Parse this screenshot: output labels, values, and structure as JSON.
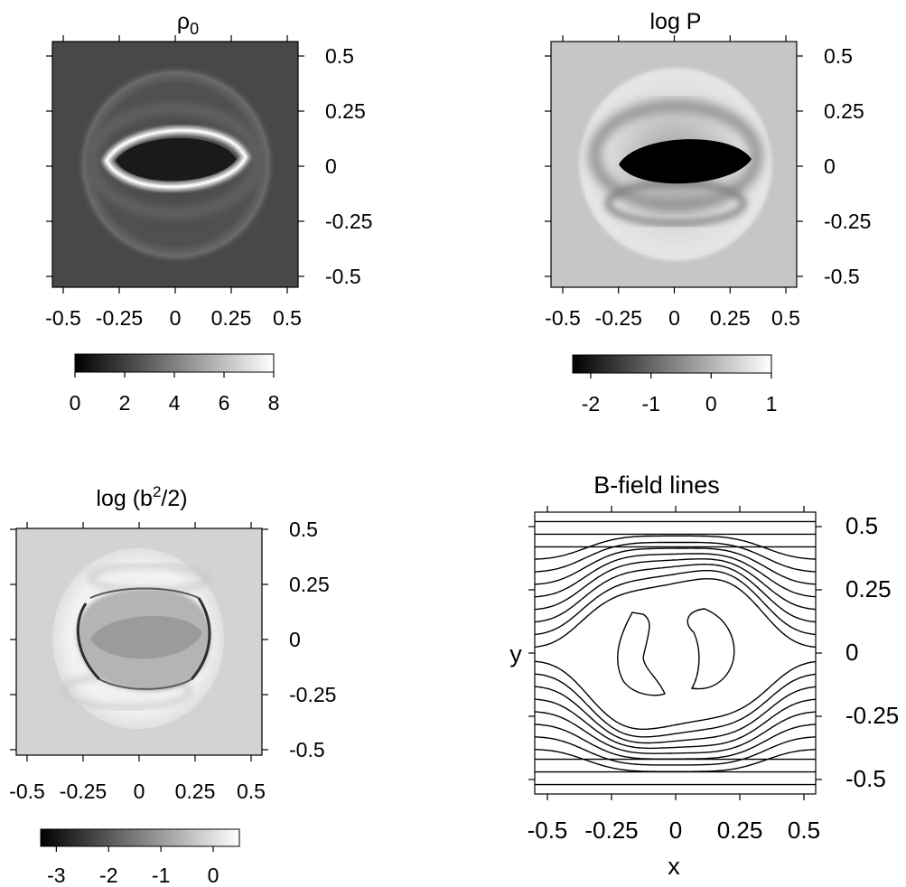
{
  "chart_data": [
    {
      "type": "heatmap",
      "title": "ρ₀",
      "title_base": "ρ",
      "title_sub": "0",
      "x_ticks": [
        "-0.5",
        "-0.25",
        "0",
        "0.25",
        "0.5"
      ],
      "y_ticks": [
        "0.5",
        "0.25",
        "0",
        "-0.25",
        "-0.5"
      ],
      "xlim": [
        -0.5,
        0.5
      ],
      "ylim": [
        -0.5,
        0.5
      ],
      "colorbar": {
        "ticks": [
          "0",
          "2",
          "4",
          "6",
          "8"
        ],
        "range": [
          0,
          8
        ]
      },
      "background_color": "#484848"
    },
    {
      "type": "heatmap",
      "title": "log P",
      "x_ticks": [
        "-0.5",
        "-0.25",
        "0",
        "0.25",
        "0.5"
      ],
      "y_ticks": [
        "0.5",
        "0.25",
        "0",
        "-0.25",
        "-0.5"
      ],
      "xlim": [
        -0.5,
        0.5
      ],
      "ylim": [
        -0.5,
        0.5
      ],
      "colorbar": {
        "ticks": [
          "-2",
          "-1",
          "0",
          "1"
        ],
        "range": [
          -2.3,
          1
        ]
      },
      "background_color": "#c6c6c6"
    },
    {
      "type": "heatmap",
      "title": "log (b²/2)",
      "title_prefix": "log (b",
      "title_sup": "2",
      "title_suffix": "/2)",
      "x_ticks": [
        "-0.5",
        "-0.25",
        "0",
        "0.25",
        "0.5"
      ],
      "y_ticks": [
        "0.5",
        "0.25",
        "0",
        "-0.25",
        "-0.5"
      ],
      "xlim": [
        -0.5,
        0.5
      ],
      "ylim": [
        -0.5,
        0.5
      ],
      "colorbar": {
        "ticks": [
          "-3",
          "-2",
          "-1",
          "0"
        ],
        "range": [
          -3.3,
          0.5
        ]
      },
      "background_color": "#d3d3d3"
    },
    {
      "type": "line",
      "title": "B-field lines",
      "xlabel": "x",
      "ylabel": "y",
      "x_ticks": [
        "-0.5",
        "-0.25",
        "0",
        "0.25",
        "0.5"
      ],
      "y_ticks": [
        "0.5",
        "0.25",
        "0",
        "-0.25",
        "-0.5"
      ],
      "xlim": [
        -0.5,
        0.5
      ],
      "ylim": [
        -0.5,
        0.5
      ],
      "straight_line_levels": [
        0.52,
        0.47,
        0.42,
        -0.42,
        -0.47,
        -0.52
      ],
      "bent_line_levels": [
        0.37,
        0.32,
        0.27,
        0.22,
        0.17,
        0.12,
        0.07,
        0.02,
        -0.03,
        -0.08,
        -0.13,
        -0.18,
        -0.23,
        -0.28,
        -0.33,
        -0.38
      ],
      "loop_count": 2,
      "line_color": "#000000"
    }
  ]
}
